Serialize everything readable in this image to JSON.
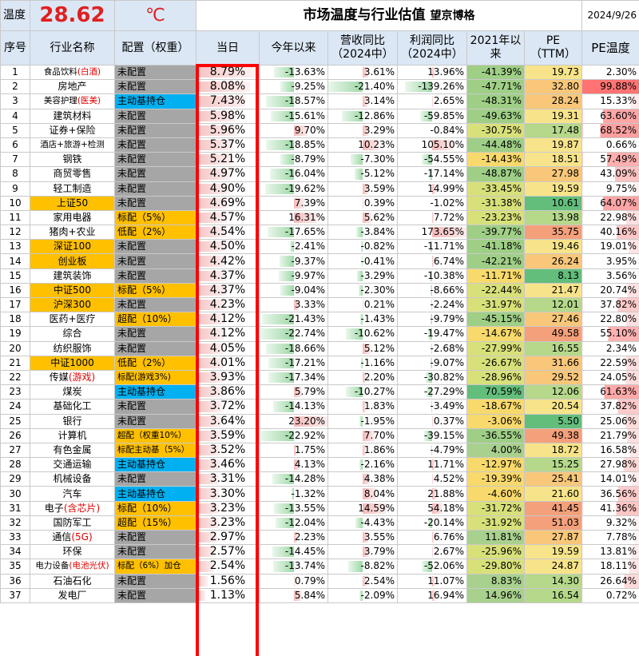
{
  "header": {
    "temp_label": "温度",
    "temp_value": "28.62",
    "temp_unit": "℃",
    "title": "市场温度与行业估值",
    "brand": "望京博格",
    "date": "2024/9/26"
  },
  "columns": [
    "序号",
    "行业名称",
    "配置（权重）",
    "当日",
    "今年以来",
    "营收同比\n（2024中）",
    "利润同比\n（2024中）",
    "2021年以\n来",
    "PE\n（TTM）",
    "PE温度"
  ],
  "colors": {
    "header_bg": "#dbe7f5",
    "highlight_yellow": "#ffc000",
    "config_grey": "#a6a6a6",
    "config_blue": "#00b0f0",
    "positive_bar": "#f6b9b9",
    "negative_bar": "#9ed8a6",
    "frame_red": "#ff0000"
  },
  "rows": [
    {
      "no": "1",
      "name": "食品饮料",
      "tag": "(白酒)",
      "hl": false,
      "cfg": "未配置",
      "cfgc": "grey",
      "day": "8.79%",
      "ytd": "-13.63%",
      "rev": "3.61%",
      "prof": "13.96%",
      "since": "-41.39%",
      "pe": "19.73",
      "pet": "2.30%"
    },
    {
      "no": "2",
      "name": "房地产",
      "tag": "",
      "hl": false,
      "cfg": "未配置",
      "cfgc": "grey",
      "day": "8.08%",
      "ytd": "-9.25%",
      "rev": "-21.40%",
      "prof": "-139.26%",
      "since": "-47.71%",
      "pe": "32.80",
      "pet": "99.88%"
    },
    {
      "no": "3",
      "name": "美容护理",
      "tag": "(医美)",
      "hl": false,
      "cfg": "主动基持仓",
      "cfgc": "blue",
      "day": "7.43%",
      "ytd": "-18.57%",
      "rev": "3.14%",
      "prof": "2.65%",
      "since": "-48.31%",
      "pe": "28.24",
      "pet": "15.33%"
    },
    {
      "no": "4",
      "name": "建筑材料",
      "tag": "",
      "hl": false,
      "cfg": "未配置",
      "cfgc": "grey",
      "day": "5.98%",
      "ytd": "-15.61%",
      "rev": "-12.86%",
      "prof": "-59.85%",
      "since": "-49.63%",
      "pe": "19.31",
      "pet": "63.60%"
    },
    {
      "no": "5",
      "name": "证券+保险",
      "tag": "",
      "hl": false,
      "cfg": "未配置",
      "cfgc": "grey",
      "day": "5.96%",
      "ytd": "9.70%",
      "rev": "3.29%",
      "prof": "-0.84%",
      "since": "-30.75%",
      "pe": "17.48",
      "pet": "68.52%"
    },
    {
      "no": "6",
      "name": "酒店+旅游+检测",
      "tag": "",
      "hl": false,
      "cfg": "未配置",
      "cfgc": "grey",
      "day": "5.37%",
      "ytd": "-18.85%",
      "rev": "10.23%",
      "prof": "105.10%",
      "since": "-44.48%",
      "pe": "19.87",
      "pet": "0.66%"
    },
    {
      "no": "7",
      "name": "钢铁",
      "tag": "",
      "hl": false,
      "cfg": "未配置",
      "cfgc": "grey",
      "day": "5.21%",
      "ytd": "-8.79%",
      "rev": "-7.30%",
      "prof": "-54.55%",
      "since": "-14.43%",
      "pe": "18.51",
      "pet": "57.49%"
    },
    {
      "no": "8",
      "name": "商贸零售",
      "tag": "",
      "hl": false,
      "cfg": "未配置",
      "cfgc": "grey",
      "day": "4.97%",
      "ytd": "-16.04%",
      "rev": "-5.12%",
      "prof": "-17.14%",
      "since": "-48.87%",
      "pe": "27.98",
      "pet": "43.09%"
    },
    {
      "no": "9",
      "name": "轻工制造",
      "tag": "",
      "hl": false,
      "cfg": "未配置",
      "cfgc": "grey",
      "day": "4.90%",
      "ytd": "-19.62%",
      "rev": "3.59%",
      "prof": "14.99%",
      "since": "-33.45%",
      "pe": "19.59",
      "pet": "9.75%"
    },
    {
      "no": "10",
      "name": "上证50",
      "tag": "",
      "hl": true,
      "cfg": "未配置",
      "cfgc": "grey",
      "day": "4.69%",
      "ytd": "7.39%",
      "rev": "0.39%",
      "prof": "-1.02%",
      "since": "-31.38%",
      "pe": "10.61",
      "pet": "64.07%"
    },
    {
      "no": "11",
      "name": "家用电器",
      "tag": "",
      "hl": false,
      "cfg": "标配（5%）",
      "cfgc": "y",
      "day": "4.57%",
      "ytd": "16.31%",
      "rev": "5.62%",
      "prof": "7.72%",
      "since": "-23.23%",
      "pe": "13.98",
      "pet": "22.98%"
    },
    {
      "no": "12",
      "name": "猪肉+农业",
      "tag": "",
      "hl": false,
      "cfg": "低配（2%）",
      "cfgc": "y",
      "day": "4.54%",
      "ytd": "-17.65%",
      "rev": "-3.84%",
      "prof": "173.65%",
      "since": "-39.77%",
      "pe": "35.75",
      "pet": "40.16%"
    },
    {
      "no": "13",
      "name": "深证100",
      "tag": "",
      "hl": true,
      "cfg": "未配置",
      "cfgc": "grey",
      "day": "4.50%",
      "ytd": "-2.41%",
      "rev": "-0.82%",
      "prof": "-11.71%",
      "since": "-41.18%",
      "pe": "19.46",
      "pet": "19.01%"
    },
    {
      "no": "14",
      "name": "创业板",
      "tag": "",
      "hl": true,
      "cfg": "未配置",
      "cfgc": "grey",
      "day": "4.42%",
      "ytd": "-9.37%",
      "rev": "-0.41%",
      "prof": "6.74%",
      "since": "-42.21%",
      "pe": "26.24",
      "pet": "3.95%"
    },
    {
      "no": "15",
      "name": "建筑装饰",
      "tag": "",
      "hl": false,
      "cfg": "未配置",
      "cfgc": "grey",
      "day": "4.37%",
      "ytd": "-9.97%",
      "rev": "-3.29%",
      "prof": "-10.38%",
      "since": "-11.71%",
      "pe": "8.13",
      "pet": "3.56%"
    },
    {
      "no": "16",
      "name": "中证500",
      "tag": "",
      "hl": true,
      "cfg": "标配（5%）",
      "cfgc": "y",
      "day": "4.37%",
      "ytd": "-9.04%",
      "rev": "-2.30%",
      "prof": "-8.66%",
      "since": "-22.44%",
      "pe": "21.47",
      "pet": "20.74%"
    },
    {
      "no": "17",
      "name": "沪深300",
      "tag": "",
      "hl": true,
      "cfg": "未配置",
      "cfgc": "grey",
      "day": "4.23%",
      "ytd": "3.33%",
      "rev": "0.21%",
      "prof": "-2.24%",
      "since": "-31.97%",
      "pe": "12.01",
      "pet": "37.82%"
    },
    {
      "no": "18",
      "name": "医药+医疗",
      "tag": "",
      "hl": false,
      "cfg": "超配（10%）",
      "cfgc": "y",
      "day": "4.12%",
      "ytd": "-21.43%",
      "rev": "-1.43%",
      "prof": "-9.79%",
      "since": "-45.15%",
      "pe": "27.46",
      "pet": "22.80%"
    },
    {
      "no": "19",
      "name": "综合",
      "tag": "",
      "hl": false,
      "cfg": "未配置",
      "cfgc": "grey",
      "day": "4.12%",
      "ytd": "-22.74%",
      "rev": "-10.62%",
      "prof": "-19.47%",
      "since": "-14.67%",
      "pe": "49.58",
      "pet": "55.10%"
    },
    {
      "no": "20",
      "name": "纺织服饰",
      "tag": "",
      "hl": false,
      "cfg": "未配置",
      "cfgc": "grey",
      "day": "4.05%",
      "ytd": "-18.66%",
      "rev": "5.12%",
      "prof": "-2.68%",
      "since": "-27.99%",
      "pe": "16.55",
      "pet": "2.34%"
    },
    {
      "no": "21",
      "name": "中证1000",
      "tag": "",
      "hl": true,
      "cfg": "低配（2%）",
      "cfgc": "y",
      "day": "4.01%",
      "ytd": "-17.21%",
      "rev": "-1.16%",
      "prof": "-9.07%",
      "since": "-26.67%",
      "pe": "31.66",
      "pet": "22.59%"
    },
    {
      "no": "22",
      "name": "传媒",
      "tag": "(游戏)",
      "hl": false,
      "cfg": "标配(游戏3%)",
      "cfgc": "y",
      "day": "3.93%",
      "ytd": "-17.34%",
      "rev": "2.20%",
      "prof": "-30.82%",
      "since": "-28.96%",
      "pe": "29.52",
      "pet": "24.05%"
    },
    {
      "no": "23",
      "name": "煤炭",
      "tag": "",
      "hl": false,
      "cfg": "主动基持仓",
      "cfgc": "blue",
      "day": "3.86%",
      "ytd": "5.79%",
      "rev": "-10.27%",
      "prof": "-27.29%",
      "since": "70.59%",
      "pe": "12.06",
      "pet": "61.63%"
    },
    {
      "no": "24",
      "name": "基础化工",
      "tag": "",
      "hl": false,
      "cfg": "未配置",
      "cfgc": "grey",
      "day": "3.72%",
      "ytd": "-14.13%",
      "rev": "1.83%",
      "prof": "-3.49%",
      "since": "-18.67%",
      "pe": "20.54",
      "pet": "37.82%"
    },
    {
      "no": "25",
      "name": "银行",
      "tag": "",
      "hl": false,
      "cfg": "未配置",
      "cfgc": "grey",
      "day": "3.64%",
      "ytd": "23.20%",
      "rev": "-1.95%",
      "prof": "0.37%",
      "since": "-3.06%",
      "pe": "5.50",
      "pet": "25.06%"
    },
    {
      "no": "26",
      "name": "计算机",
      "tag": "",
      "hl": false,
      "cfg": "超配（权重10%）",
      "cfgc": "y",
      "day": "3.59%",
      "ytd": "-22.92%",
      "rev": "7.70%",
      "prof": "-39.15%",
      "since": "-36.55%",
      "pe": "49.38",
      "pet": "21.79%"
    },
    {
      "no": "27",
      "name": "有色金属",
      "tag": "",
      "hl": false,
      "cfg": "标配主动基（5%）",
      "cfgc": "y",
      "day": "3.52%",
      "ytd": "1.75%",
      "rev": "1.86%",
      "prof": "-4.79%",
      "since": "4.00%",
      "pe": "18.72",
      "pet": "16.58%"
    },
    {
      "no": "28",
      "name": "交通运输",
      "tag": "",
      "hl": false,
      "cfg": "主动基持仓",
      "cfgc": "blue",
      "day": "3.46%",
      "ytd": "4.13%",
      "rev": "-2.16%",
      "prof": "11.71%",
      "since": "-12.97%",
      "pe": "15.25",
      "pet": "27.98%"
    },
    {
      "no": "29",
      "name": "机械设备",
      "tag": "",
      "hl": false,
      "cfg": "未配置",
      "cfgc": "grey",
      "day": "3.31%",
      "ytd": "-14.28%",
      "rev": "4.38%",
      "prof": "4.52%",
      "since": "-19.39%",
      "pe": "25.41",
      "pet": "14.01%"
    },
    {
      "no": "30",
      "name": "汽车",
      "tag": "",
      "hl": false,
      "cfg": "主动基持仓",
      "cfgc": "blue",
      "day": "3.30%",
      "ytd": "-1.32%",
      "rev": "8.04%",
      "prof": "21.88%",
      "since": "-4.60%",
      "pe": "21.60",
      "pet": "36.56%"
    },
    {
      "no": "31",
      "name": "电子",
      "tag": "(含芯片)",
      "hl": false,
      "cfg": "标配（10%）",
      "cfgc": "y",
      "day": "3.23%",
      "ytd": "-13.55%",
      "rev": "14.59%",
      "prof": "54.18%",
      "since": "-31.72%",
      "pe": "41.45",
      "pet": "41.36%"
    },
    {
      "no": "32",
      "name": "国防军工",
      "tag": "",
      "hl": false,
      "cfg": "超配（15%）",
      "cfgc": "y",
      "day": "3.23%",
      "ytd": "-12.04%",
      "rev": "-4.43%",
      "prof": "-20.14%",
      "since": "-31.92%",
      "pe": "51.03",
      "pet": "9.32%"
    },
    {
      "no": "33",
      "name": "通信",
      "tag": "(5G)",
      "hl": false,
      "cfg": "未配置",
      "cfgc": "grey",
      "day": "2.97%",
      "ytd": "2.23%",
      "rev": "3.55%",
      "prof": "6.76%",
      "since": "11.81%",
      "pe": "27.87",
      "pet": "7.78%"
    },
    {
      "no": "34",
      "name": "环保",
      "tag": "",
      "hl": false,
      "cfg": "未配置",
      "cfgc": "grey",
      "day": "2.57%",
      "ytd": "-14.45%",
      "rev": "3.79%",
      "prof": "2.67%",
      "since": "-25.96%",
      "pe": "19.59",
      "pet": "13.81%"
    },
    {
      "no": "35",
      "name": "电力设备",
      "tag": "(电池光伏)",
      "hl": false,
      "cfg": "标配（6%）加仓",
      "cfgc": "y",
      "day": "2.54%",
      "ytd": "-13.74%",
      "rev": "-8.82%",
      "prof": "-52.06%",
      "since": "-29.80%",
      "pe": "24.87",
      "pet": "18.11%"
    },
    {
      "no": "36",
      "name": "石油石化",
      "tag": "",
      "hl": false,
      "cfg": "未配置",
      "cfgc": "grey",
      "day": "1.56%",
      "ytd": "0.79%",
      "rev": "2.54%",
      "prof": "11.07%",
      "since": "8.83%",
      "pe": "14.30",
      "pet": "26.64%"
    },
    {
      "no": "37",
      "name": "发电厂",
      "tag": "",
      "hl": false,
      "cfg": "未配置",
      "cfgc": "grey",
      "day": "1.13%",
      "ytd": "5.84%",
      "rev": "-2.09%",
      "prof": "16.94%",
      "since": "14.96%",
      "pe": "16.54",
      "pet": "0.72%"
    }
  ]
}
